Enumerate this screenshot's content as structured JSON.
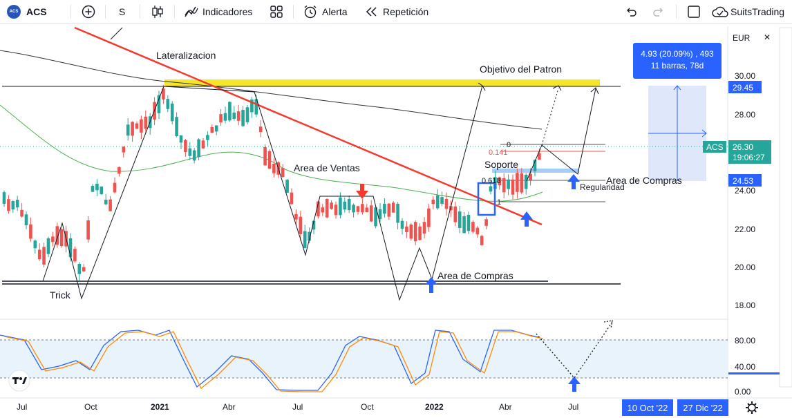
{
  "toolbar": {
    "logo_text": "ACS",
    "symbol": "ACS",
    "interval": "S",
    "indicators_label": "Indicadores",
    "alert_label": "Alerta",
    "replay_label": "Repetición",
    "brand_label": "SuitsTrading"
  },
  "price_axis": {
    "currency": "EUR",
    "ticks": [
      "30.00",
      "28.00",
      "24.00",
      "22.00",
      "20.00",
      "18.00"
    ],
    "osc_ticks": [
      "80.00",
      "40.00",
      "0.00"
    ],
    "badges": {
      "target": "29.45",
      "symbol": "ACS",
      "last": "26.30",
      "countdown": "19:06:27",
      "support": "24.53"
    }
  },
  "time_axis": {
    "labels": [
      "Jul",
      "Oct",
      "2021",
      "Abr",
      "Jul",
      "Oct",
      "2022",
      "Abr",
      "Jul"
    ],
    "range_start": "10 Oct '22",
    "range_end": "27 Dic '22"
  },
  "measure": {
    "line1": "4.93 (20.09%) , 493",
    "line2": "11 barras, 78d"
  },
  "annotations": {
    "lateral": "Lateralizacion",
    "objective": "Objetivo del Patron",
    "sell_area": "Area de Ventas",
    "buy_area_1": "Area de Compras",
    "buy_area_2": "Area de Compras",
    "support": "Soporte",
    "regularity": "Regularidad",
    "trick": "Trick",
    "fib_0": "0",
    "fib_0141": "0.141",
    "fib_0618": "0.618",
    "fib_1": "1"
  },
  "colors": {
    "up": "#26a69a",
    "down": "#ef5350",
    "accent": "#2962ff",
    "trendline": "#f23a2f",
    "target_band": "#f5e62a",
    "ma_long": "#333333",
    "ma_mid": "#43a047"
  },
  "icons": {
    "add": "plus-circle-icon",
    "candles": "candles-icon",
    "indicators": "indicators-icon",
    "templates": "templates-icon",
    "alert": "alarm-clock-icon",
    "replay": "rewind-icon",
    "undo": "undo-icon",
    "redo": "redo-icon",
    "fullscreen": "square-icon",
    "cloud": "cloud-icon",
    "settings": "gear-icon",
    "tv_logo": "tradingview-icon"
  }
}
